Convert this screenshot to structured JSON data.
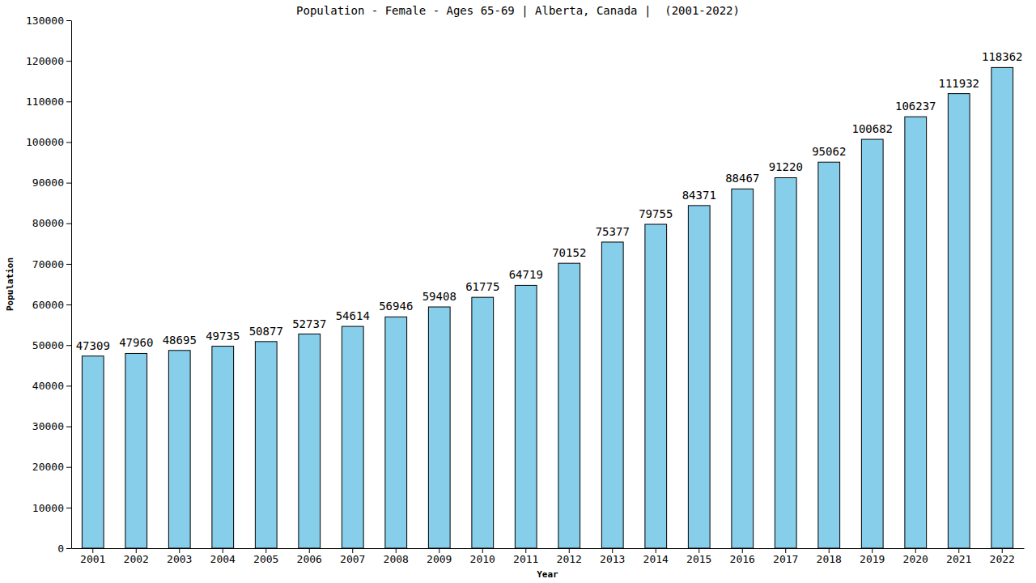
{
  "chart_data": {
    "type": "bar",
    "title": "Population - Female - Ages 65-69 | Alberta, Canada |  (2001-2022)",
    "x_label": "Year",
    "y_label": "Population",
    "categories": [
      "2001",
      "2002",
      "2003",
      "2004",
      "2005",
      "2006",
      "2007",
      "2008",
      "2009",
      "2010",
      "2011",
      "2012",
      "2013",
      "2014",
      "2015",
      "2016",
      "2017",
      "2018",
      "2019",
      "2020",
      "2021",
      "2022"
    ],
    "values": [
      47309,
      47960,
      48695,
      49735,
      50877,
      52737,
      54614,
      56946,
      59408,
      61775,
      64719,
      70152,
      75377,
      79755,
      84371,
      88467,
      91220,
      95062,
      100682,
      106237,
      111932,
      118362
    ],
    "color": "#87ceeb",
    "ylim": [
      0,
      130000
    ],
    "yticks": [
      0,
      10000,
      20000,
      30000,
      40000,
      50000,
      60000,
      70000,
      80000,
      90000,
      100000,
      110000,
      120000,
      130000
    ],
    "grid": false,
    "data_labels": true
  }
}
